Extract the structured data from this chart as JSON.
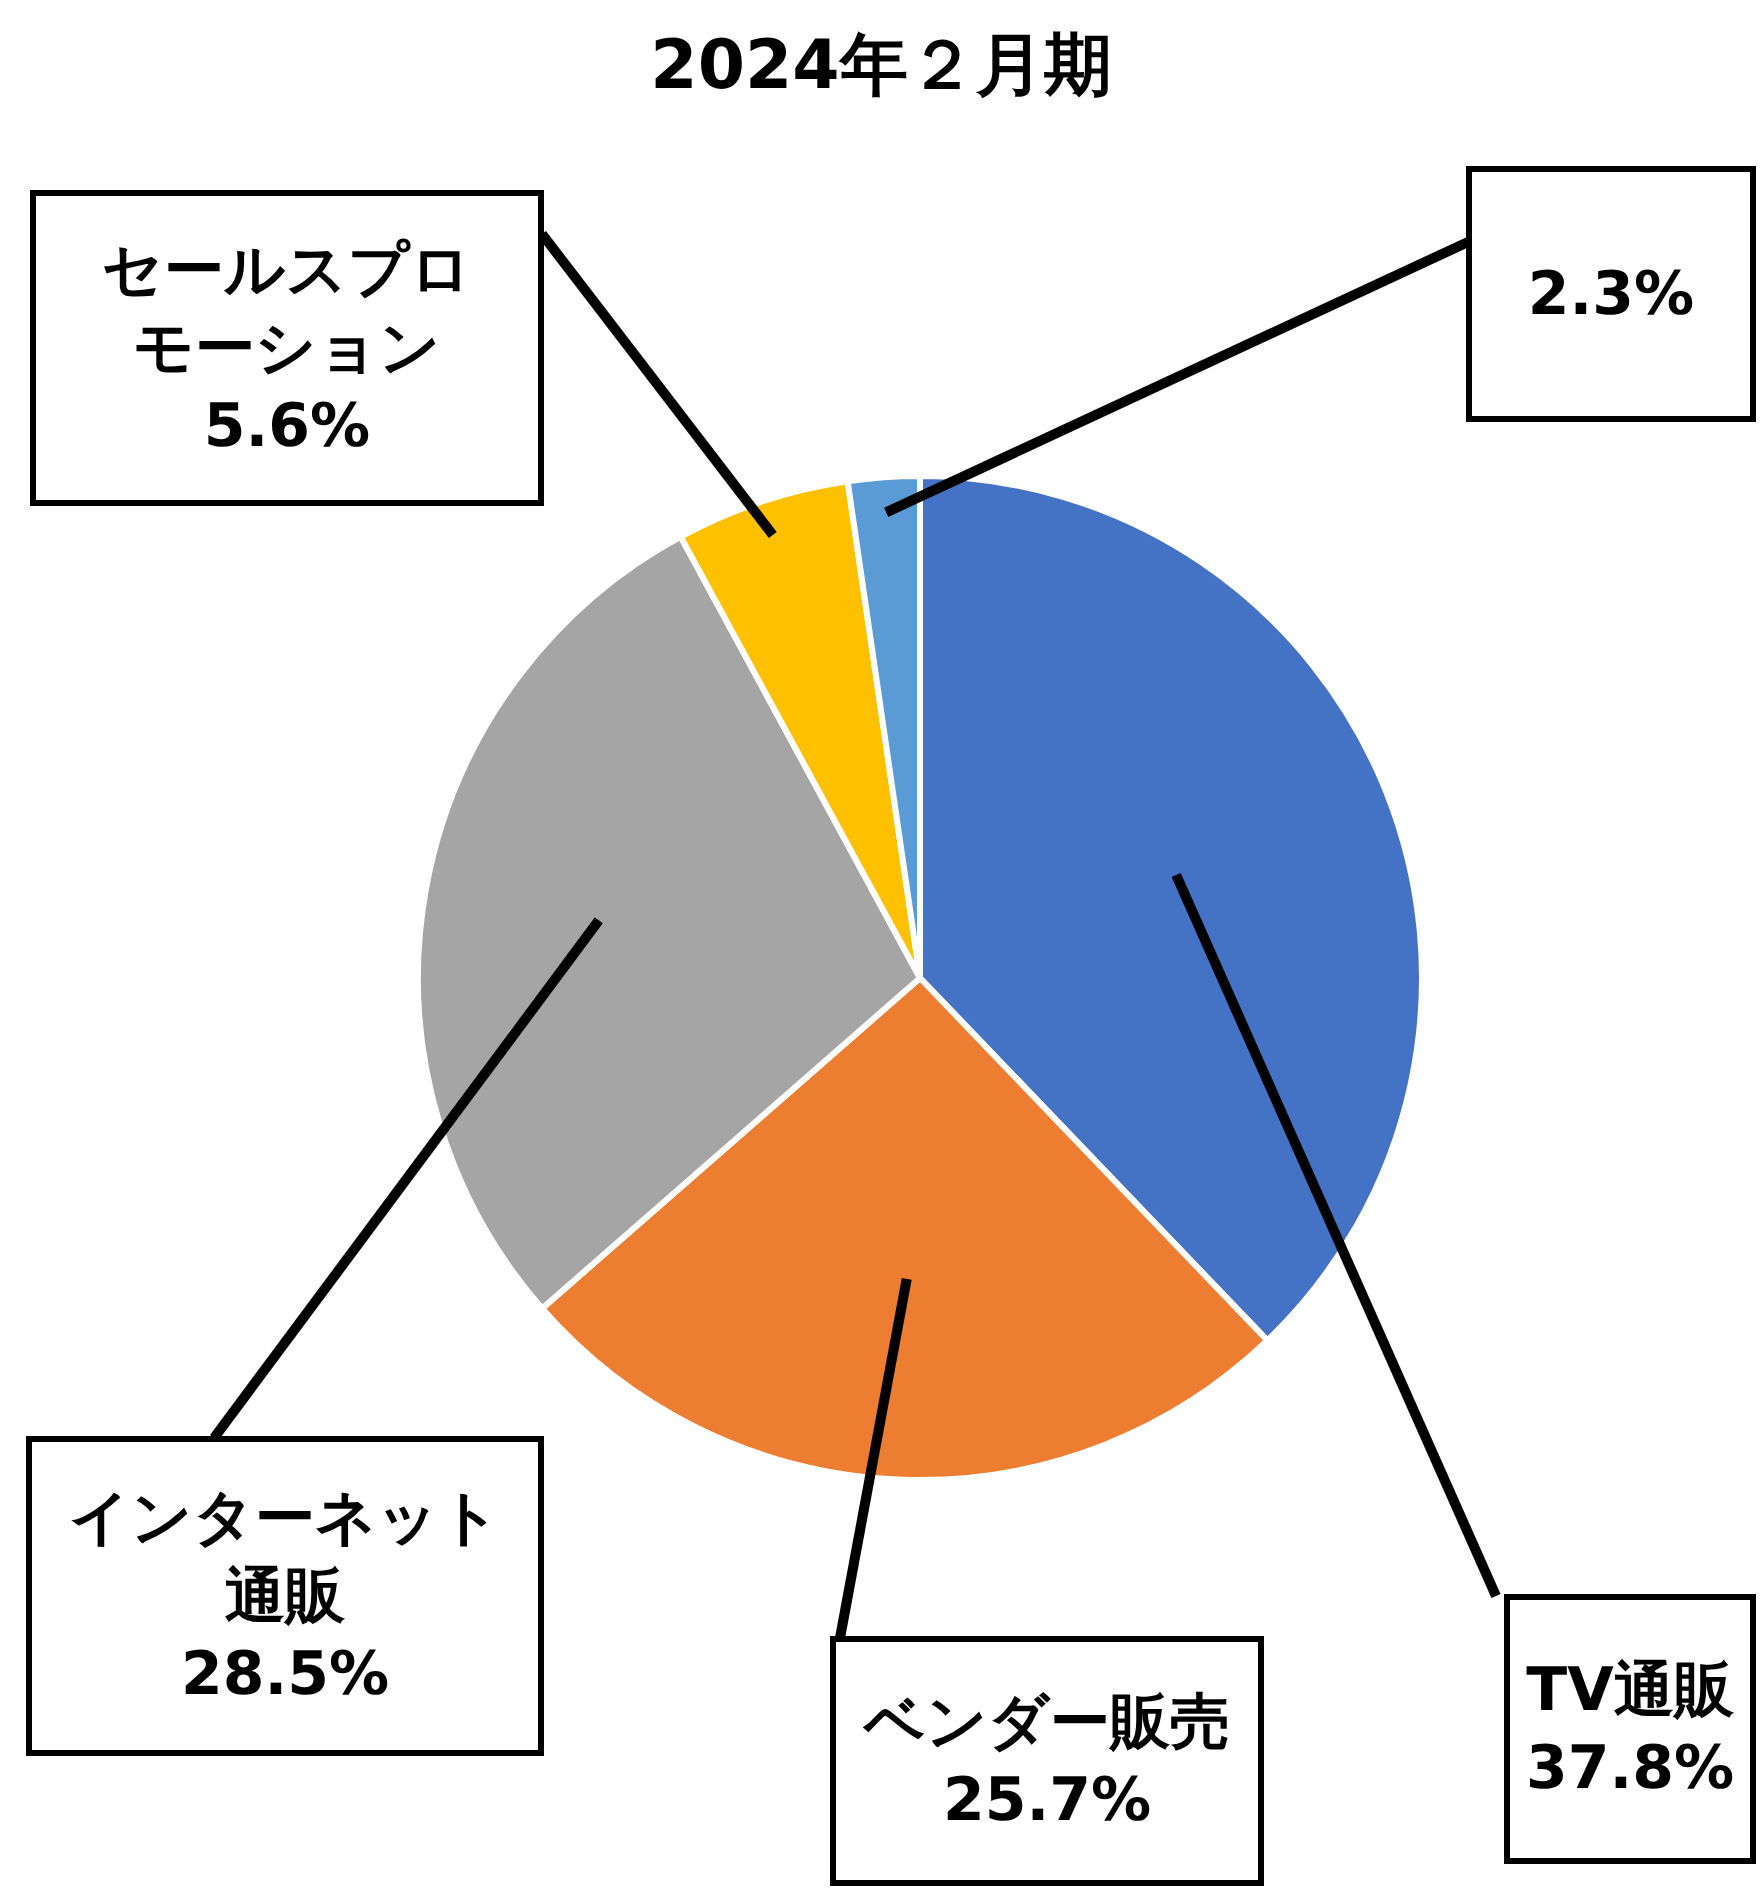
{
  "chart_data": {
    "type": "pie",
    "title": "2024年２月期",
    "categories": [
      "TV通販",
      "ベンダー販売",
      "インターネット通販",
      "セールスプロモーション",
      null
    ],
    "values": [
      37.8,
      25.7,
      28.5,
      5.6,
      2.3
    ],
    "colors": [
      "#4472c4",
      "#ed7d31",
      "#a5a5a5",
      "#ffc000",
      "#5b9bd5"
    ],
    "value_labels": [
      "37.8%",
      "25.7%",
      "28.5%",
      "5.6%",
      "2.3%"
    ],
    "data_labels": true
  }
}
